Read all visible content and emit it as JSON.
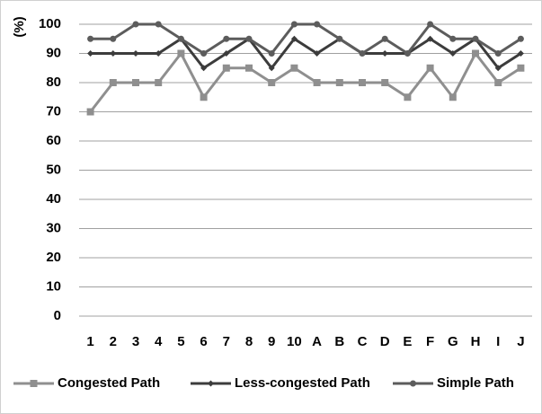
{
  "chart_data": {
    "type": "line",
    "y_label": "(%)",
    "categories": [
      "1",
      "2",
      "3",
      "4",
      "5",
      "6",
      "7",
      "8",
      "9",
      "10",
      "A",
      "B",
      "C",
      "D",
      "E",
      "F",
      "G",
      "H",
      "I",
      "J"
    ],
    "series": [
      {
        "name": "Congested Path",
        "color": "#8f8f8f",
        "marker": "square",
        "values": [
          70,
          80,
          80,
          80,
          90,
          75,
          85,
          85,
          80,
          85,
          80,
          80,
          80,
          80,
          75,
          85,
          75,
          90,
          80,
          85
        ]
      },
      {
        "name": "Less-congested Path",
        "color": "#3c3c3c",
        "marker": "diamond",
        "values": [
          90,
          90,
          90,
          90,
          95,
          85,
          90,
          95,
          85,
          95,
          90,
          95,
          90,
          90,
          90,
          95,
          90,
          95,
          85,
          90
        ]
      },
      {
        "name": "Simple Path",
        "color": "#5c5c5c",
        "marker": "circle",
        "values": [
          95,
          95,
          100,
          100,
          95,
          90,
          95,
          95,
          90,
          100,
          100,
          95,
          90,
          95,
          90,
          100,
          95,
          95,
          90,
          95
        ]
      }
    ],
    "ylim": [
      0,
      100
    ],
    "yticks": [
      0,
      10,
      20,
      30,
      40,
      50,
      60,
      70,
      80,
      90,
      100
    ],
    "grid": true,
    "legend": "bottom"
  }
}
